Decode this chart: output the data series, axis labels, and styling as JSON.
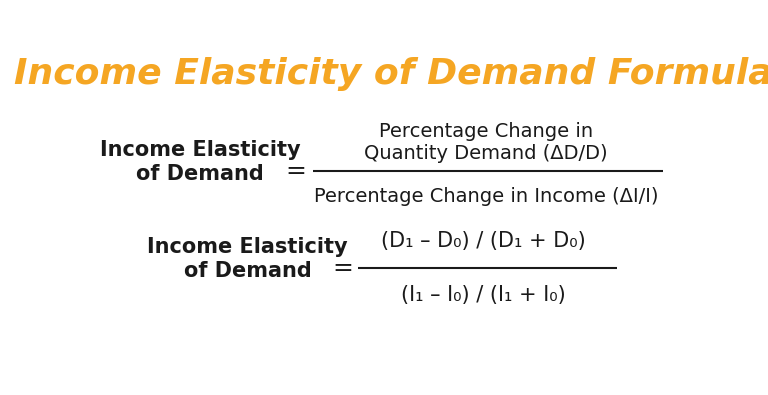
{
  "title": "Income Elasticity of Demand Formula",
  "title_color": "#F5A623",
  "title_fontsize": 26,
  "bg_color": "#FFFFFF",
  "text_color": "#1a1a1a",
  "formula1_label_line1": "Income Elasticity",
  "formula1_label_line2": "of Demand",
  "formula1_numerator_line1": "Percentage Change in",
  "formula1_numerator_line2": "Quantity Demand (ΔD/D)",
  "formula1_denominator": "Percentage Change in Income (ΔI/I)",
  "formula2_label_line1": "Income Elasticity",
  "formula2_label_line2": "of Demand",
  "formula2_numerator": "(D₁ – D₀) / (D₁ + D₀)",
  "formula2_denominator": "(I₁ – I₀) / (I₁ + I₀)",
  "label_fontsize": 15,
  "formula_fontsize": 14,
  "equals_fontsize": 18,
  "title_weight": "bold"
}
